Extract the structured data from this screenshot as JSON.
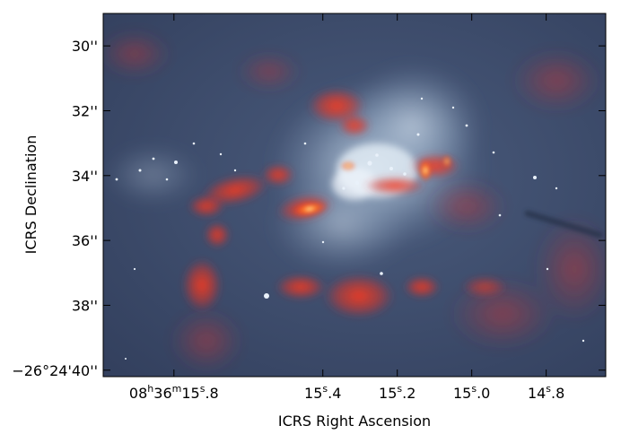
{
  "chart_data": {
    "type": "image",
    "xlabel": "ICRS Right Ascension",
    "ylabel": "ICRS Declination",
    "x_ticks": [
      {
        "h": "08",
        "m": "36",
        "s": "15",
        "frac": ".8",
        "sec": 15.8
      },
      {
        "h": "",
        "m": "",
        "s": "15",
        "frac": ".4",
        "sec": 15.4
      },
      {
        "h": "",
        "m": "",
        "s": "15",
        "frac": ".2",
        "sec": 15.2
      },
      {
        "h": "",
        "m": "",
        "s": "15",
        "frac": ".0",
        "sec": 15.0
      },
      {
        "h": "",
        "m": "",
        "s": "14",
        "frac": ".8",
        "sec": 14.8
      }
    ],
    "y_ticks": [
      {
        "label": "30''",
        "arcsec": 30
      },
      {
        "label": "32''",
        "arcsec": 32
      },
      {
        "label": "34''",
        "arcsec": 34
      },
      {
        "label": "36''",
        "arcsec": 36
      },
      {
        "label": "38''",
        "arcsec": 38
      },
      {
        "label": "−26°24'40''",
        "arcsec": 40
      }
    ],
    "xlim": [
      15.99,
      14.64
    ],
    "ylim": [
      29.0,
      40.2
    ],
    "background_color": "#3a4a6c",
    "emission_color": "#ff3018",
    "star_color": "#dbe8f6",
    "grid": false
  }
}
